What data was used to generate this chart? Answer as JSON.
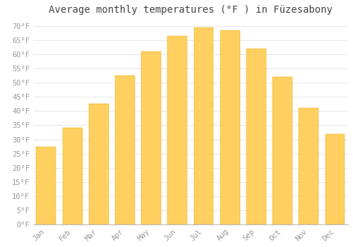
{
  "title": "Average monthly temperatures (°F ) in Füzesabony",
  "months": [
    "Jan",
    "Feb",
    "Mar",
    "Apr",
    "May",
    "Jun",
    "Jul",
    "Aug",
    "Sep",
    "Oct",
    "Nov",
    "Dec"
  ],
  "values": [
    27.5,
    34.0,
    42.5,
    52.5,
    61.0,
    66.5,
    69.5,
    68.5,
    62.0,
    52.0,
    41.0,
    32.0
  ],
  "bar_color_top": "#FFA500",
  "bar_color_bottom": "#FFD060",
  "bar_edge_color": "#E8A000",
  "background_color": "#FFFFFF",
  "grid_color": "#DDDDDD",
  "text_color": "#999999",
  "title_color": "#444444",
  "ylim": [
    0,
    72
  ],
  "yticks": [
    0,
    5,
    10,
    15,
    20,
    25,
    30,
    35,
    40,
    45,
    50,
    55,
    60,
    65,
    70
  ],
  "title_fontsize": 10,
  "tick_fontsize": 7.5
}
